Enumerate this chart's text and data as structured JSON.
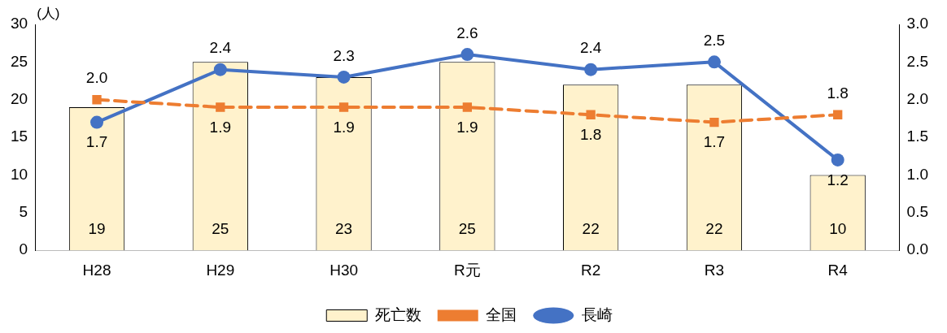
{
  "chart_data": {
    "type": "bar",
    "ylabel": "(人)",
    "categories": [
      "H28",
      "H29",
      "H30",
      "R元",
      "R2",
      "R3",
      "R4"
    ],
    "series": [
      {
        "name": "死亡数",
        "color": "#fff2cc",
        "values": [
          19,
          25,
          23,
          25,
          22,
          22,
          10
        ],
        "value_labels": [
          "19",
          "25",
          "23",
          "25",
          "22",
          "22",
          "10"
        ]
      },
      {
        "name": "全国",
        "type": "line",
        "axis": "y2",
        "color": "#ed7d31",
        "line_style": "dashed",
        "marker": "square",
        "values": [
          2.0,
          1.9,
          1.9,
          1.9,
          1.8,
          1.7,
          1.8
        ],
        "value_labels": [
          "2.0",
          "1.9",
          "1.9",
          "1.9",
          "1.8",
          "1.7",
          "1.8"
        ]
      },
      {
        "name": "長崎",
        "type": "line",
        "axis": "y2",
        "color": "#4472c4",
        "line_style": "solid",
        "marker": "circle",
        "values": [
          1.7,
          2.4,
          2.3,
          2.6,
          2.4,
          2.5,
          1.2
        ],
        "value_labels": [
          "1.7",
          "2.4",
          "2.3",
          "2.6",
          "2.4",
          "2.5",
          "1.2"
        ]
      }
    ],
    "ylim": [
      0,
      30
    ],
    "yticks": [
      0,
      5,
      10,
      15,
      20,
      25,
      30
    ],
    "y2lim": [
      0,
      3
    ],
    "y2ticks": [
      {
        "value": 0,
        "label": "0.0"
      },
      {
        "value": 0.5,
        "label": "0.5"
      },
      {
        "value": 1,
        "label": "1.0"
      },
      {
        "value": 1.5,
        "label": "1.5"
      },
      {
        "value": 2,
        "label": "2.0"
      },
      {
        "value": 2.5,
        "label": "2.5"
      },
      {
        "value": 3,
        "label": "3.0"
      }
    ],
    "grid": false,
    "legend": "bottom"
  }
}
